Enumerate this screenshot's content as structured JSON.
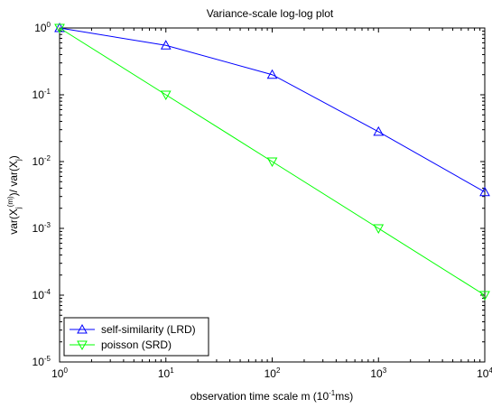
{
  "chart_data": {
    "type": "line",
    "title": "Variance-scale log-log plot",
    "xlabel": {
      "main": "observation time scale m (10",
      "sup": "-1",
      "tail": "ms)"
    },
    "ylabel": {
      "p1": "var(X",
      "sub1": "j",
      "sup1": "(m)",
      "p2": ")/ var(X",
      "sub2": "j",
      "p3": ")"
    },
    "xscale": "log",
    "yscale": "log",
    "xlim": [
      1,
      10000
    ],
    "ylim": [
      1e-05,
      1
    ],
    "x_ticks": [
      {
        "value": 1,
        "base": "10",
        "exp": "0"
      },
      {
        "value": 10,
        "base": "10",
        "exp": "1"
      },
      {
        "value": 100,
        "base": "10",
        "exp": "2"
      },
      {
        "value": 1000,
        "base": "10",
        "exp": "3"
      },
      {
        "value": 10000,
        "base": "10",
        "exp": "4"
      }
    ],
    "y_ticks": [
      {
        "value": 1,
        "base": "10",
        "exp": "0"
      },
      {
        "value": 0.1,
        "base": "10",
        "exp": "-1"
      },
      {
        "value": 0.01,
        "base": "10",
        "exp": "-2"
      },
      {
        "value": 0.001,
        "base": "10",
        "exp": "-3"
      },
      {
        "value": 0.0001,
        "base": "10",
        "exp": "-4"
      },
      {
        "value": 1e-05,
        "base": "10",
        "exp": "-5"
      }
    ],
    "grid": false,
    "legend_position": "bottom-left",
    "series": [
      {
        "name": "self-similarity (LRD)",
        "color": "#0000ff",
        "marker": "triangle-up",
        "x": [
          1,
          10,
          100,
          1000,
          10000
        ],
        "y": [
          1,
          0.55,
          0.2,
          0.028,
          0.0035
        ]
      },
      {
        "name": "poisson (SRD)",
        "color": "#00ff00",
        "marker": "triangle-down",
        "x": [
          1,
          10,
          100,
          1000,
          10000
        ],
        "y": [
          1,
          0.1,
          0.01,
          0.001,
          0.0001
        ]
      }
    ]
  }
}
